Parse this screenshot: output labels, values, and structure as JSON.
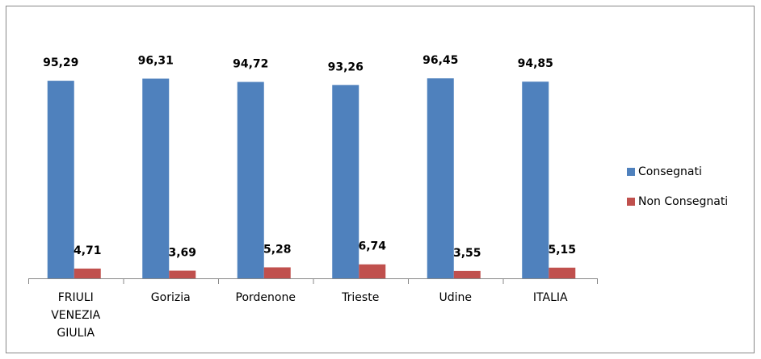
{
  "chart_data": {
    "type": "bar",
    "categories": [
      "FRIULI VENEZIA GIULIA",
      "Gorizia",
      "Pordenone",
      "Trieste",
      "Udine",
      "ITALIA"
    ],
    "series": [
      {
        "name": "Consegnati",
        "color": "#4f81bd",
        "values": [
          95.29,
          96.31,
          94.72,
          93.26,
          96.45,
          94.85
        ],
        "value_labels": [
          "95,29",
          "96,31",
          "94,72",
          "93,26",
          "96,45",
          "94,85"
        ]
      },
      {
        "name": "Non Consegnati",
        "color": "#c0504d",
        "values": [
          4.71,
          3.69,
          5.28,
          6.74,
          3.55,
          5.15
        ],
        "value_labels": [
          "4,71",
          "3,69",
          "5,28",
          "6,74",
          "3,55",
          "5,15"
        ]
      }
    ],
    "legend": "right"
  }
}
